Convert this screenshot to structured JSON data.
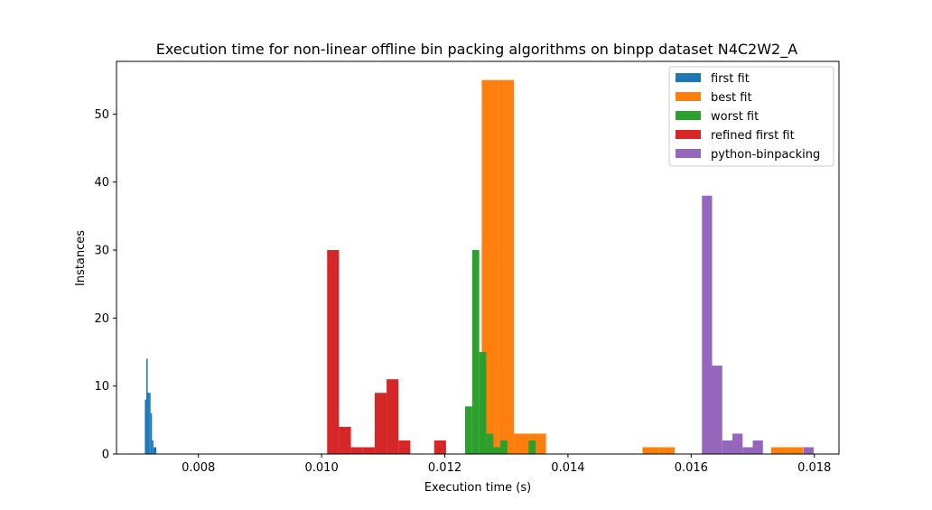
{
  "chart_data": {
    "type": "bar",
    "title": "Execution time for non-linear offline bin packing algorithms on binpp dataset N4C2W2_A",
    "xlabel": "Execution time (s)",
    "ylabel": "Instances",
    "xlim": [
      0.00667,
      0.0184
    ],
    "ylim": [
      0,
      57.75
    ],
    "xticks": [
      "0.008",
      "0.010",
      "0.012",
      "0.014",
      "0.016",
      "0.018"
    ],
    "xtick_values": [
      0.008,
      0.01,
      0.012,
      0.014,
      0.016,
      0.018
    ],
    "yticks": [
      "0",
      "10",
      "20",
      "30",
      "40",
      "50"
    ],
    "ytick_values": [
      0,
      10,
      20,
      30,
      40,
      50
    ],
    "grid": false,
    "legend_position": "top-right",
    "series": [
      {
        "name": "first fit",
        "color": "#1f77b4",
        "bin_start": 0.00713,
        "bin_width": 2.33e-05,
        "counts": [
          8,
          14,
          9,
          9,
          6,
          2,
          1,
          1
        ]
      },
      {
        "name": "best fit",
        "color": "#ff7f0e",
        "bin_start": 0.0126,
        "bin_width": 0.000261,
        "counts": [
          55,
          55,
          3,
          3,
          0,
          0,
          0,
          0,
          0,
          0,
          1,
          1,
          0,
          0,
          0,
          0,
          0,
          0,
          1,
          1
        ]
      },
      {
        "name": "worst fit",
        "color": "#2ca02c",
        "bin_start": 0.01233,
        "bin_width": 0.0001145,
        "counts": [
          7,
          30,
          15,
          3,
          1,
          2,
          0,
          0,
          0,
          2
        ]
      },
      {
        "name": "refined first fit",
        "color": "#d62728",
        "bin_start": 0.01009,
        "bin_width": 0.000193,
        "counts": [
          30,
          4,
          1,
          1,
          9,
          11,
          2,
          0,
          0,
          2
        ]
      },
      {
        "name": "python-binpacking",
        "color": "#9467bd",
        "bin_start": 0.016175,
        "bin_width": 0.000165,
        "counts": [
          38,
          13,
          2,
          3,
          1,
          2,
          0,
          0,
          0,
          0,
          1
        ]
      }
    ]
  }
}
